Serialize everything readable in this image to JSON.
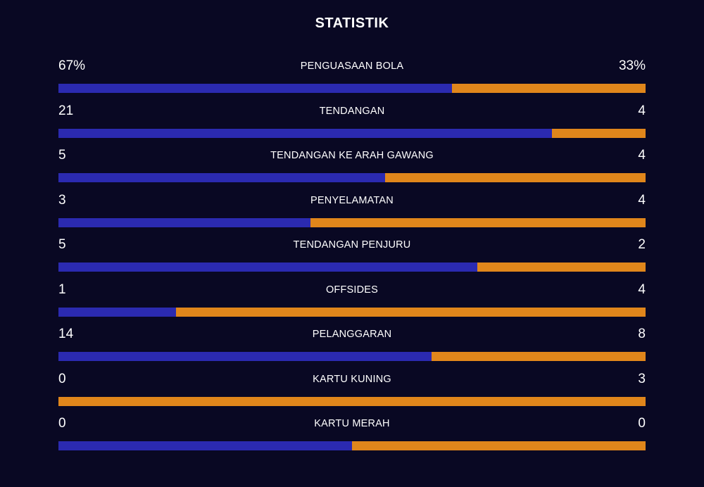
{
  "title": "STATISTIK",
  "colors": {
    "background": "#090823",
    "home_bar": "#2b2ab0",
    "away_bar": "#e0861b"
  },
  "stats": [
    {
      "label": "PENGUASAAN BOLA",
      "home": "67%",
      "away": "33%",
      "home_share": 0.67
    },
    {
      "label": "TENDANGAN",
      "home": "21",
      "away": "4",
      "home_share": 0.84
    },
    {
      "label": "TENDANGAN KE ARAH GAWANG",
      "home": "5",
      "away": "4",
      "home_share": 0.556
    },
    {
      "label": "PENYELAMATAN",
      "home": "3",
      "away": "4",
      "home_share": 0.429
    },
    {
      "label": "TENDANGAN PENJURU",
      "home": "5",
      "away": "2",
      "home_share": 0.714
    },
    {
      "label": "OFFSIDES",
      "home": "1",
      "away": "4",
      "home_share": 0.2
    },
    {
      "label": "PELANGGARAN",
      "home": "14",
      "away": "8",
      "home_share": 0.636
    },
    {
      "label": "KARTU KUNING",
      "home": "0",
      "away": "3",
      "home_share": 0
    },
    {
      "label": "KARTU MERAH",
      "home": "0",
      "away": "0",
      "home_share": 0.5
    }
  ]
}
